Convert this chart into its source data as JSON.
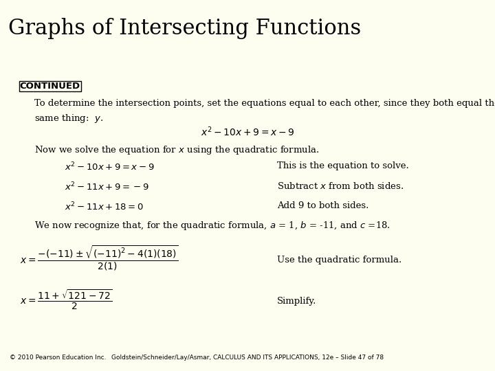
{
  "title": "Graphs of Intersecting Functions",
  "title_bg": "#f5f2d8",
  "title_color": "#000000",
  "title_fontsize": 22,
  "body_bg": "#fdfdf0",
  "stripe_color": "#8b1010",
  "continued_label": "CONTINUED",
  "continued_fontsize": 9.5,
  "body_fontsize": 9.5,
  "math_fontsize": 9.5,
  "footer_text_left": "© 2010 Pearson Education Inc.",
  "footer_text_right": "Goldstein/Schneider/Lay/Asmar, CALCULUS AND ITS APPLICATIONS, 12e – Slide 47 of 78",
  "footer_fontsize": 6.5
}
